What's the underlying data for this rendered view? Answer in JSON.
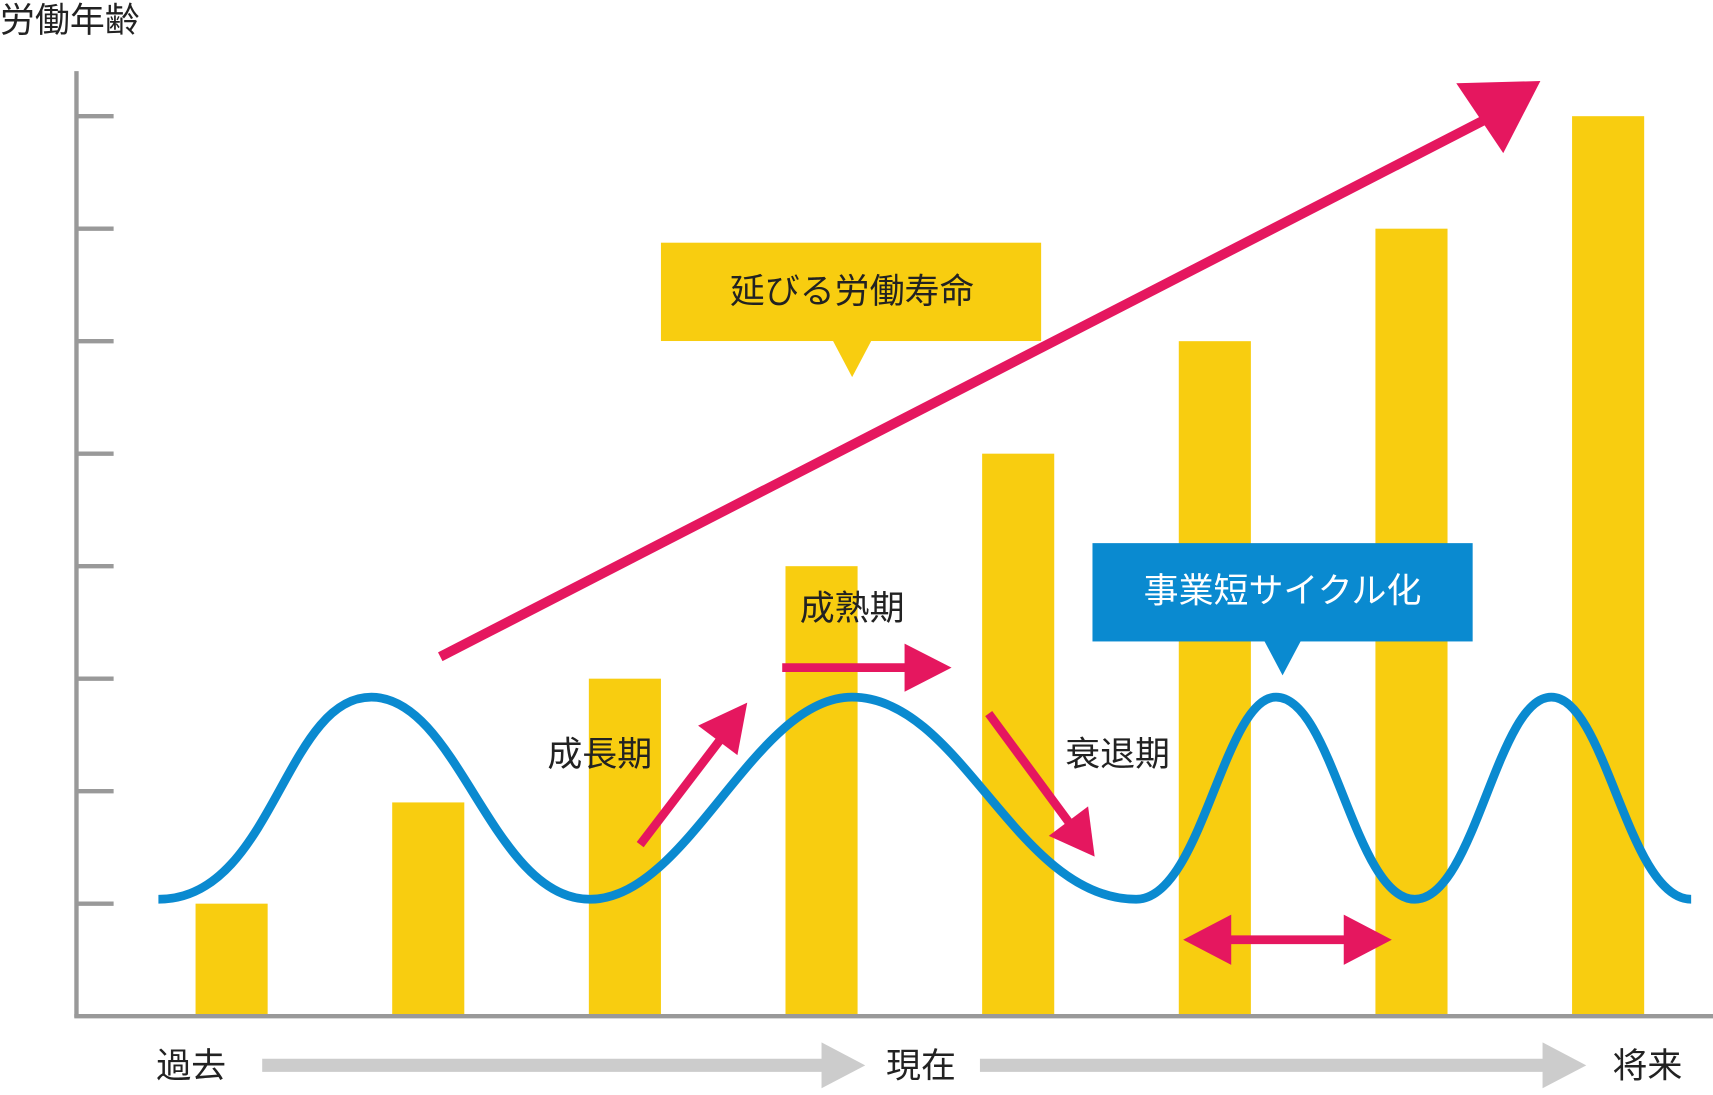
{
  "chart_data": {
    "type": "bar",
    "y_label": "労働年齢",
    "categories": [
      null,
      null,
      null,
      null,
      null,
      null,
      null,
      null
    ],
    "values": [
      1,
      1.9,
      3,
      4,
      5,
      6,
      7,
      8
    ],
    "color": "#f8cd10",
    "ylim": [
      0,
      8.4
    ],
    "yticks": [
      1,
      2,
      3,
      4,
      5,
      6,
      7,
      8
    ],
    "time_labels": [
      "過去",
      "現在",
      "将来"
    ],
    "annotations": {
      "lifespan": "延びる労働寿命",
      "cycle": "事業短サイクル化",
      "maturity": "成熟期",
      "growth": "成長期",
      "decline": "衰退期"
    }
  }
}
